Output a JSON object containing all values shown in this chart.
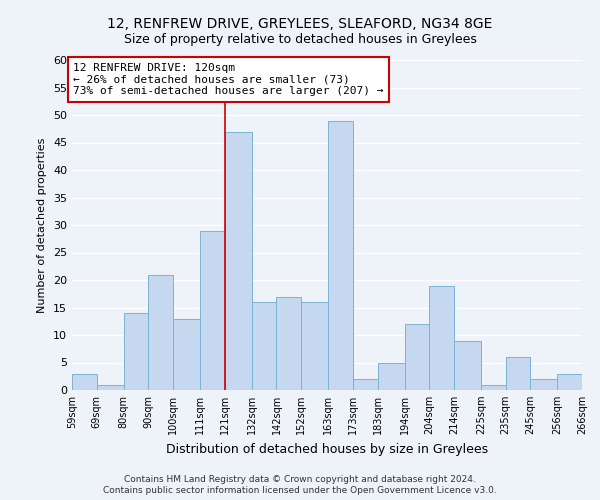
{
  "title": "12, RENFREW DRIVE, GREYLEES, SLEAFORD, NG34 8GE",
  "subtitle": "Size of property relative to detached houses in Greylees",
  "xlabel": "Distribution of detached houses by size in Greylees",
  "ylabel": "Number of detached properties",
  "bins": [
    59,
    69,
    80,
    90,
    100,
    111,
    121,
    132,
    142,
    152,
    163,
    173,
    183,
    194,
    204,
    214,
    225,
    235,
    245,
    256,
    266
  ],
  "values": [
    3,
    1,
    14,
    21,
    13,
    29,
    47,
    16,
    17,
    16,
    49,
    2,
    5,
    12,
    19,
    9,
    1,
    6,
    2,
    3
  ],
  "bar_color": "#c5d8f0",
  "bar_edge_color": "#7ab3d4",
  "property_line_x": 121,
  "property_line_color": "#cc0000",
  "annotation_line1": "12 RENFREW DRIVE: 120sqm",
  "annotation_line2": "← 26% of detached houses are smaller (73)",
  "annotation_line3": "73% of semi-detached houses are larger (207) →",
  "annotation_box_color": "#cc0000",
  "ylim": [
    0,
    60
  ],
  "yticks": [
    0,
    5,
    10,
    15,
    20,
    25,
    30,
    35,
    40,
    45,
    50,
    55,
    60
  ],
  "tick_labels": [
    "59sqm",
    "69sqm",
    "80sqm",
    "90sqm",
    "100sqm",
    "111sqm",
    "121sqm",
    "132sqm",
    "142sqm",
    "152sqm",
    "163sqm",
    "173sqm",
    "183sqm",
    "194sqm",
    "204sqm",
    "214sqm",
    "225sqm",
    "235sqm",
    "245sqm",
    "256sqm",
    "266sqm"
  ],
  "footer_line1": "Contains HM Land Registry data © Crown copyright and database right 2024.",
  "footer_line2": "Contains public sector information licensed under the Open Government Licence v3.0.",
  "background_color": "#eef2f9",
  "grid_color": "#ffffff",
  "title_fontsize": 10,
  "subtitle_fontsize": 9,
  "ylabel_fontsize": 8,
  "xlabel_fontsize": 9
}
